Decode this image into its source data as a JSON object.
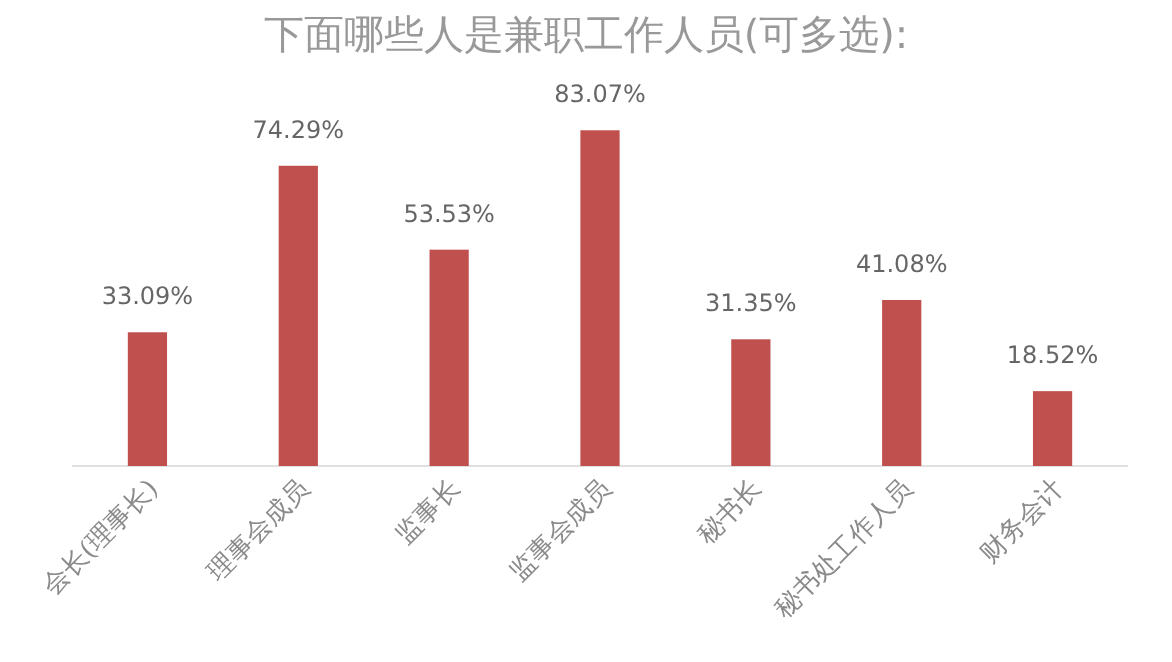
{
  "chart_data": {
    "type": "bar",
    "title": "下面哪些人是兼职工作人员(可多选):",
    "categories": [
      "会长(理事长)",
      "理事会成员",
      "监事长",
      "监事会成员",
      "秘书长",
      "秘书处工作人员",
      "财务会计"
    ],
    "values": [
      33.09,
      74.29,
      53.53,
      83.07,
      31.35,
      41.08,
      18.52
    ],
    "value_labels": [
      "33.09%",
      "74.29%",
      "53.53%",
      "83.07%",
      "31.35%",
      "41.08%",
      "18.52%"
    ],
    "color": "#c0504d",
    "grid": false
  }
}
